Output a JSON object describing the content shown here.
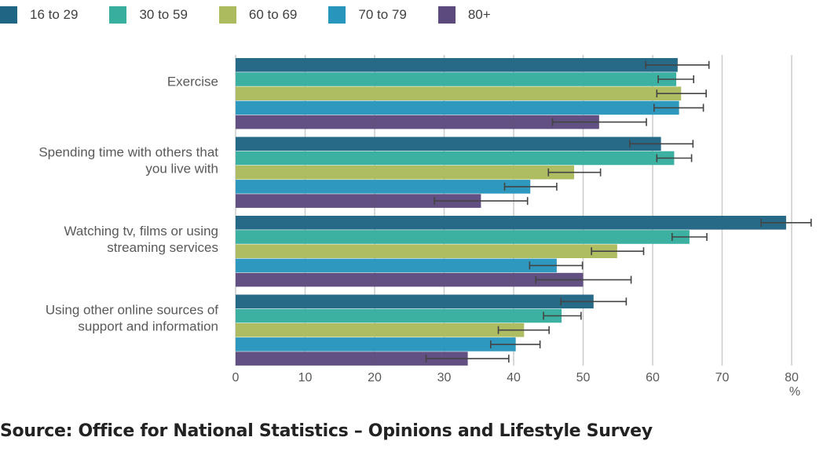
{
  "chart_data": {
    "type": "bar",
    "orientation": "horizontal",
    "title": "",
    "xlabel": "%",
    "ylabel": "",
    "xlim": [
      0,
      80
    ],
    "xticks": [
      0,
      10,
      20,
      30,
      40,
      50,
      60,
      70,
      80
    ],
    "grid": true,
    "legend_position": "top-left",
    "error_bars": true,
    "categories": [
      [
        "Exercise"
      ],
      [
        "Spending time with others that",
        "you live with"
      ],
      [
        "Watching tv, films or using",
        "streaming services"
      ],
      [
        "Using other online sources of",
        "support and information"
      ]
    ],
    "series": [
      {
        "name": "16 to 29",
        "color": "#206584",
        "values": [
          63.6,
          61.2,
          79.2,
          51.5
        ],
        "ci_low": [
          59.0,
          56.7,
          75.6,
          46.8
        ],
        "ci_high": [
          68.1,
          65.8,
          82.8,
          56.2
        ]
      },
      {
        "name": "30 to 59",
        "color": "#37ae9e",
        "values": [
          63.4,
          63.1,
          65.3,
          46.9
        ],
        "ci_low": [
          60.8,
          60.6,
          62.8,
          44.3
        ],
        "ci_high": [
          65.9,
          65.6,
          67.8,
          49.7
        ]
      },
      {
        "name": "60 to 69",
        "color": "#abbb5d",
        "values": [
          64.1,
          48.7,
          54.9,
          41.5
        ],
        "ci_low": [
          60.6,
          45.0,
          51.2,
          37.8
        ],
        "ci_high": [
          67.7,
          52.5,
          58.7,
          45.1
        ]
      },
      {
        "name": "70 to 79",
        "color": "#2895bd",
        "values": [
          63.8,
          42.4,
          46.2,
          40.3
        ],
        "ci_low": [
          60.2,
          38.7,
          42.3,
          36.7
        ],
        "ci_high": [
          67.3,
          46.2,
          49.9,
          43.8
        ]
      },
      {
        "name": "80+",
        "color": "#5c4a7d",
        "values": [
          52.3,
          35.3,
          50.0,
          33.4
        ],
        "ci_low": [
          45.6,
          28.6,
          43.2,
          27.4
        ],
        "ci_high": [
          59.1,
          42.0,
          56.9,
          39.3
        ]
      }
    ]
  },
  "source": "Source: Office for National Statistics – Opinions and Lifestyle Survey"
}
